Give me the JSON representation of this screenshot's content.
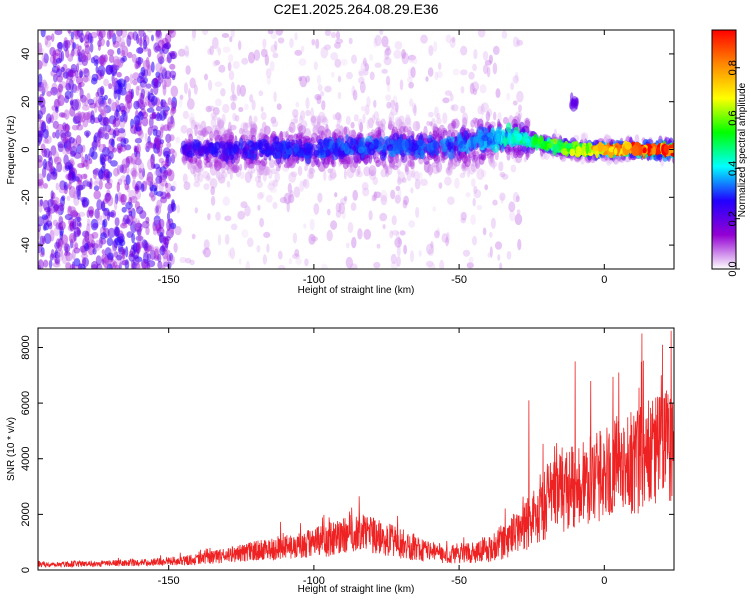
{
  "title": "C2E1.2025.264.08.29.E36",
  "chart_data": [
    {
      "type": "heatmap",
      "id": "spectrogram",
      "xlabel": "Height of straight line (km)",
      "ylabel": "Frequency (Hz)",
      "xlim": [
        -195,
        24
      ],
      "ylim": [
        -50,
        50
      ],
      "xticks": [
        -150,
        -100,
        -50,
        0
      ],
      "yticks": [
        -40,
        -20,
        0,
        20,
        40
      ],
      "colorbar": {
        "label": "Normalized spectral amplitude",
        "range": [
          0.0,
          0.95
        ],
        "ticks": [
          0.0,
          0.2,
          0.4,
          0.6,
          0.8
        ],
        "tick_labels": [
          "0.0",
          "0.2",
          "0.4",
          "0.6",
          "0.8"
        ],
        "colormap": [
          "#ffffff",
          "#9400d3",
          "#2200ff",
          "#00ffff",
          "#00ff00",
          "#ffff00",
          "#ff8800",
          "#ff0000"
        ]
      },
      "features": {
        "noisy_region_x": [
          -195,
          -148
        ],
        "central_band": [
          {
            "x": -145,
            "freq": 0,
            "amp": 0.25
          },
          {
            "x": -125,
            "freq": 0,
            "amp": 0.28
          },
          {
            "x": -100,
            "freq": 0,
            "amp": 0.3
          },
          {
            "x": -80,
            "freq": 1,
            "amp": 0.33
          },
          {
            "x": -60,
            "freq": 1,
            "amp": 0.32
          },
          {
            "x": -40,
            "freq": 4,
            "amp": 0.38
          },
          {
            "x": -30,
            "freq": 5,
            "amp": 0.45
          },
          {
            "x": -20,
            "freq": 2,
            "amp": 0.55
          },
          {
            "x": -10,
            "freq": 0,
            "amp": 0.65
          },
          {
            "x": 0,
            "freq": 0,
            "amp": 0.8
          },
          {
            "x": 10,
            "freq": 0,
            "amp": 0.9
          },
          {
            "x": 24,
            "freq": 0,
            "amp": 0.95
          }
        ]
      }
    },
    {
      "type": "line",
      "id": "snr",
      "xlabel": "Height of straight line (km)",
      "ylabel": "SNR (10 * v/v)",
      "xlim": [
        -195,
        24
      ],
      "ylim": [
        0,
        8700
      ],
      "xticks": [
        -150,
        -100,
        -50,
        0
      ],
      "yticks": [
        0,
        2000,
        4000,
        6000,
        8000
      ],
      "color": "#ee2222",
      "envelope": [
        {
          "x": -195,
          "mean": 180,
          "spread": 120
        },
        {
          "x": -160,
          "mean": 250,
          "spread": 150
        },
        {
          "x": -140,
          "mean": 350,
          "spread": 250
        },
        {
          "x": -120,
          "mean": 650,
          "spread": 450
        },
        {
          "x": -100,
          "mean": 900,
          "spread": 700
        },
        {
          "x": -85,
          "mean": 1300,
          "spread": 900
        },
        {
          "x": -70,
          "mean": 900,
          "spread": 700
        },
        {
          "x": -55,
          "mean": 500,
          "spread": 400
        },
        {
          "x": -40,
          "mean": 700,
          "spread": 600
        },
        {
          "x": -30,
          "mean": 1200,
          "spread": 1000
        },
        {
          "x": -20,
          "mean": 2300,
          "spread": 1700
        },
        {
          "x": -10,
          "mean": 2900,
          "spread": 1900
        },
        {
          "x": 0,
          "mean": 3300,
          "spread": 2100
        },
        {
          "x": 10,
          "mean": 3700,
          "spread": 2400
        },
        {
          "x": 24,
          "mean": 4300,
          "spread": 2700
        }
      ],
      "spikes": [
        {
          "x": -26,
          "y": 6100
        },
        {
          "x": -10,
          "y": 7500
        },
        {
          "x": 5,
          "y": 7100
        },
        {
          "x": 13,
          "y": 8500
        },
        {
          "x": 20,
          "y": 8100
        },
        {
          "x": 23,
          "y": 8600
        }
      ]
    }
  ]
}
